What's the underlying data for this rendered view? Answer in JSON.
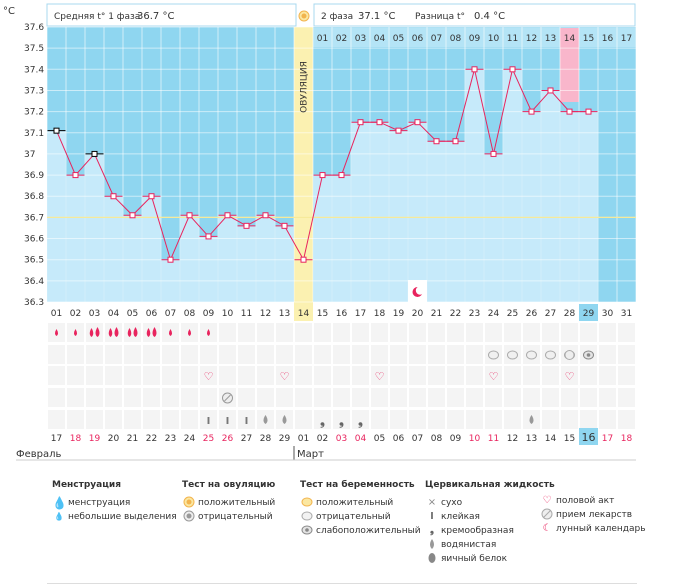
{
  "header": {
    "unit": "°C",
    "phase1_label": "Средняя t° 1 фаза",
    "phase1_value": "36.7 °C",
    "phase2_label": "2 фаза",
    "phase2_value": "37.1 °C",
    "diff_label": "Разница t°",
    "diff_value": "0.4 °C",
    "ovulation_label": "ОВУЛЯЦИЯ"
  },
  "chart_data": {
    "type": "line",
    "ylim": [
      36.3,
      37.6
    ],
    "yticks": [
      "37.6",
      "37.5",
      "37.4",
      "37.3",
      "37.2",
      "37.1",
      "37",
      "36.9",
      "36.8",
      "36.7",
      "36.6",
      "36.5",
      "36.4",
      "36.3"
    ],
    "cover_line": 36.7,
    "ovulation_day": 14,
    "cycle_days": [
      "01",
      "02",
      "03",
      "04",
      "05",
      "06",
      "07",
      "08",
      "09",
      "10",
      "11",
      "12",
      "13",
      "14",
      "15",
      "16",
      "17",
      "18",
      "19",
      "20",
      "21",
      "22",
      "23",
      "24",
      "25",
      "26",
      "27",
      "28",
      "29",
      "30",
      "31"
    ],
    "phase2_days": [
      "01",
      "02",
      "03",
      "04",
      "05",
      "06",
      "07",
      "08",
      "09",
      "10",
      "11",
      "12",
      "13",
      "14",
      "15",
      "16",
      "17"
    ],
    "temperatures": [
      37.11,
      36.9,
      37.0,
      36.8,
      36.71,
      36.8,
      36.5,
      36.71,
      36.61,
      36.71,
      36.66,
      36.71,
      36.66,
      36.5,
      36.9,
      36.9,
      37.15,
      37.15,
      37.11,
      37.15,
      37.06,
      37.06,
      37.4,
      37.0,
      37.4,
      37.2,
      37.3,
      37.2,
      37.2
    ],
    "highlight_phase2_day": 14,
    "today_cycle_day": 29,
    "dates": [
      "17",
      "18",
      "19",
      "20",
      "21",
      "22",
      "23",
      "24",
      "25",
      "26",
      "27",
      "28",
      "29",
      "01",
      "02",
      "03",
      "04",
      "05",
      "06",
      "07",
      "08",
      "09",
      "10",
      "11",
      "12",
      "13",
      "14",
      "15",
      "16",
      "17",
      "18"
    ],
    "weekend_indices": [
      1,
      2,
      8,
      9,
      15,
      16,
      22,
      23,
      29,
      30
    ],
    "today_date_index": 28,
    "month_labels": [
      {
        "label": "Февраль",
        "at": 0
      },
      {
        "label": "Март",
        "at": 13
      }
    ],
    "moon_day": 20,
    "menstruation": {
      "days": [
        1,
        2,
        3,
        4,
        5,
        6,
        7,
        8,
        9
      ],
      "heavy": [
        3,
        4,
        5,
        6
      ]
    },
    "ovulation_tests": {
      "negative": [
        10
      ]
    },
    "pregnancy_tests": {
      "negative": [
        24,
        25,
        26,
        27,
        28
      ],
      "faint": [
        29
      ]
    },
    "sex_days": [
      9,
      13,
      18,
      24,
      28
    ],
    "medication_days": [
      28
    ],
    "mucus": {
      "sticky": [
        9,
        10,
        11
      ],
      "creamy": [
        15,
        16,
        17
      ],
      "watery": [
        12,
        13,
        26
      ],
      "eggwhite": []
    }
  },
  "legend": {
    "menstruation": {
      "title": "Менструация",
      "items": [
        "менструация",
        "небольшие выделения"
      ]
    },
    "ovulation_test": {
      "title": "Тест на овуляцию",
      "items": [
        "положительный",
        "отрицательный"
      ]
    },
    "pregnancy_test": {
      "title": "Тест на беременность",
      "items": [
        "положительный",
        "отрицательный",
        "слабоположительный"
      ]
    },
    "cervical_fluid": {
      "title": "Цервикальная жидкость",
      "items": [
        "сухо",
        "клейкая",
        "кремообразная",
        "водянистая",
        "яичный белок"
      ]
    },
    "other": {
      "items": [
        "половой акт",
        "прием лекарств",
        "лунный календарь"
      ]
    }
  },
  "colors": {
    "grid_bg": "#8fd6f0",
    "bar": "#c6eafa",
    "line": "#e8245e",
    "ovulation": "#fbf1b1",
    "today": "#8fd6f0",
    "highlight": "#f9b6cb",
    "weekend": "#e8245e"
  }
}
